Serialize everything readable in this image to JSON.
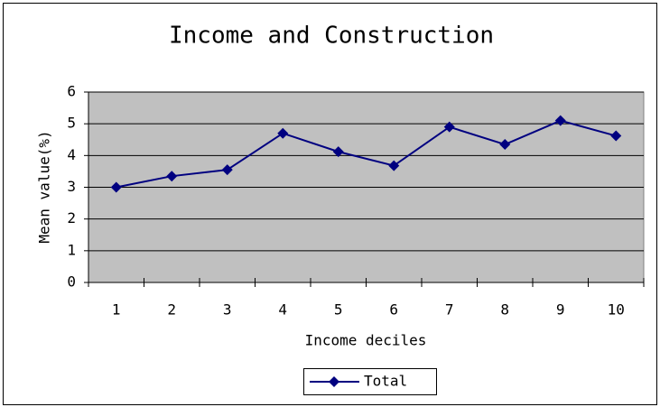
{
  "chart_data": {
    "type": "line",
    "title": "Income and Construction",
    "x_label": "Income deciles",
    "y_label": "Mean value(%)",
    "categories": [
      "1",
      "2",
      "3",
      "4",
      "5",
      "6",
      "7",
      "8",
      "9",
      "10"
    ],
    "series": [
      {
        "name": "Total",
        "color": "#000080",
        "values": [
          3.0,
          3.35,
          3.55,
          4.7,
          4.12,
          3.68,
          4.9,
          4.35,
          5.1,
          4.62
        ]
      }
    ],
    "ylim": [
      0,
      6
    ],
    "yticks": [
      0,
      1,
      2,
      3,
      4,
      5,
      6
    ],
    "grid": true,
    "legend": "bottom"
  }
}
